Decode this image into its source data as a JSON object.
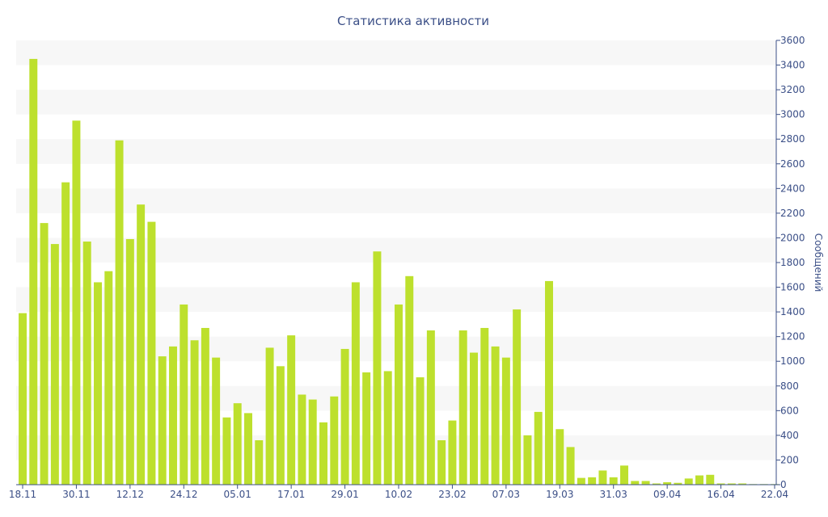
{
  "chart_data": {
    "type": "bar",
    "title": "Статистика активности",
    "xlabel": "",
    "ylabel": "Сообщений",
    "ylim": [
      0,
      3600
    ],
    "yticks": [
      0,
      200,
      400,
      600,
      800,
      1000,
      1200,
      1400,
      1600,
      1800,
      2000,
      2200,
      2400,
      2600,
      2800,
      3000,
      3200,
      3400,
      3600
    ],
    "x_tick_labels": [
      {
        "index": 0,
        "label": "18.11"
      },
      {
        "index": 5,
        "label": "30.11"
      },
      {
        "index": 10,
        "label": "12.12"
      },
      {
        "index": 15,
        "label": "24.12"
      },
      {
        "index": 20,
        "label": "05.01"
      },
      {
        "index": 25,
        "label": "17.01"
      },
      {
        "index": 30,
        "label": "29.01"
      },
      {
        "index": 35,
        "label": "10.02"
      },
      {
        "index": 40,
        "label": "23.02"
      },
      {
        "index": 45,
        "label": "07.03"
      },
      {
        "index": 50,
        "label": "19.03"
      },
      {
        "index": 55,
        "label": "31.03"
      },
      {
        "index": 60,
        "label": "09.04"
      },
      {
        "index": 65,
        "label": "16.04"
      },
      {
        "index": 70,
        "label": "22.04"
      }
    ],
    "values": [
      1390,
      3450,
      2120,
      1950,
      2450,
      2950,
      1970,
      1640,
      1730,
      2790,
      1990,
      2270,
      2130,
      1040,
      1120,
      1460,
      1170,
      1270,
      1030,
      545,
      660,
      580,
      360,
      1110,
      960,
      1210,
      730,
      690,
      505,
      715,
      1100,
      1640,
      910,
      1890,
      920,
      1460,
      1690,
      870,
      1250,
      360,
      520,
      1250,
      1070,
      1270,
      1120,
      1030,
      1420,
      400,
      590,
      1650,
      450,
      305,
      55,
      60,
      115,
      60,
      155,
      30,
      30,
      10,
      20,
      15,
      50,
      75,
      80,
      10,
      10,
      10,
      5,
      5,
      5
    ],
    "bar_color": "#bde02d",
    "grid": true,
    "grid_band_color": "#f7f7f7",
    "axis_color": "#3b4f87",
    "y_axis_position": "right"
  }
}
